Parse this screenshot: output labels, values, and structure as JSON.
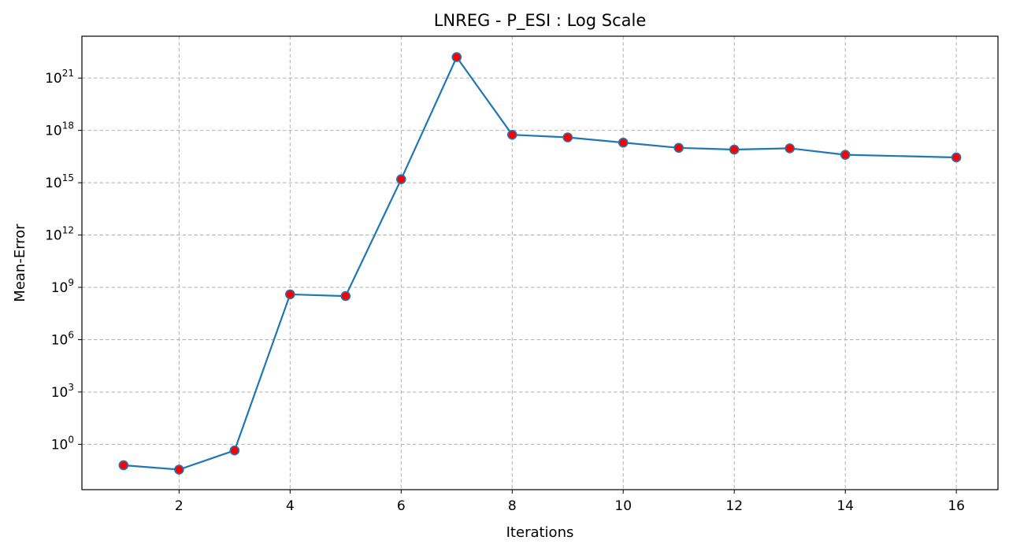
{
  "chart_data": {
    "type": "line",
    "title": "LNREG - P_ESI : Log Scale",
    "xlabel": "Iterations",
    "ylabel": "Mean-Error",
    "xlim": [
      0.25,
      16.75
    ],
    "ylim_log10": [
      -2.6,
      23.4
    ],
    "yscale": "log",
    "grid": true,
    "x_ticks": [
      2,
      4,
      6,
      8,
      10,
      12,
      14,
      16
    ],
    "y_ticks": [
      {
        "base": "10",
        "exp": "0",
        "log10": 0
      },
      {
        "base": "10",
        "exp": "3",
        "log10": 3
      },
      {
        "base": "10",
        "exp": "6",
        "log10": 6
      },
      {
        "base": "10",
        "exp": "9",
        "log10": 9
      },
      {
        "base": "10",
        "exp": "12",
        "log10": 12
      },
      {
        "base": "10",
        "exp": "15",
        "log10": 15
      },
      {
        "base": "10",
        "exp": "18",
        "log10": 18
      },
      {
        "base": "10",
        "exp": "21",
        "log10": 21
      }
    ],
    "series": [
      {
        "x": [
          1,
          2,
          3,
          4,
          5,
          6,
          7,
          8,
          9,
          10,
          11,
          12,
          13,
          14,
          15,
          16
        ],
        "log10_y": [
          -1.2,
          -1.45,
          -0.35,
          8.6,
          8.5,
          15.2,
          22.2,
          17.75,
          17.6,
          17.3,
          17.0,
          16.9,
          16.97,
          16.6,
          null,
          16.45
        ]
      }
    ],
    "colors": {
      "line": "#1f77b4",
      "marker_face": "#ff0000",
      "marker_edge": "#1f77b4",
      "grid": "#b0b0b0"
    }
  }
}
